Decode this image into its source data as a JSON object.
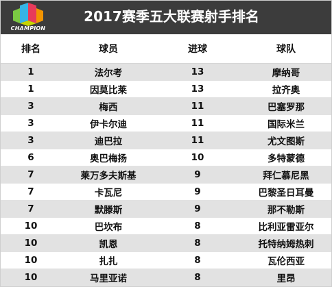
{
  "title": "2017赛季五大联赛射手排名",
  "logo": {
    "text": "CHAMPION",
    "colors": [
      "#36b4e6",
      "#c8d400",
      "#e83a5a",
      "#f29400",
      "#7ac943"
    ]
  },
  "table": {
    "headers": [
      "排名",
      "球员",
      "进球",
      "球队"
    ],
    "rows": [
      {
        "rank": "1",
        "player": "法尔考",
        "goals": "13",
        "team": "摩纳哥"
      },
      {
        "rank": "1",
        "player": "因莫比莱",
        "goals": "13",
        "team": "拉齐奥"
      },
      {
        "rank": "3",
        "player": "梅西",
        "goals": "11",
        "team": "巴塞罗那"
      },
      {
        "rank": "3",
        "player": "伊卡尔迪",
        "goals": "11",
        "team": "国际米兰"
      },
      {
        "rank": "3",
        "player": "迪巴拉",
        "goals": "11",
        "team": "尤文图斯"
      },
      {
        "rank": "6",
        "player": "奥巴梅扬",
        "goals": "10",
        "team": "多特蒙德"
      },
      {
        "rank": "7",
        "player": "莱万多夫斯基",
        "goals": "9",
        "team": "拜仁慕尼黑"
      },
      {
        "rank": "7",
        "player": "卡瓦尼",
        "goals": "9",
        "team": "巴黎圣日耳曼"
      },
      {
        "rank": "7",
        "player": "默滕斯",
        "goals": "9",
        "team": "那不勒斯"
      },
      {
        "rank": "10",
        "player": "巴坎布",
        "goals": "8",
        "team": "比利亚雷亚尔"
      },
      {
        "rank": "10",
        "player": "凯恩",
        "goals": "8",
        "team": "托特纳姆热刺"
      },
      {
        "rank": "10",
        "player": "扎扎",
        "goals": "8",
        "team": "瓦伦西亚"
      },
      {
        "rank": "10",
        "player": "马里亚诺",
        "goals": "8",
        "team": "里昂"
      }
    ]
  }
}
